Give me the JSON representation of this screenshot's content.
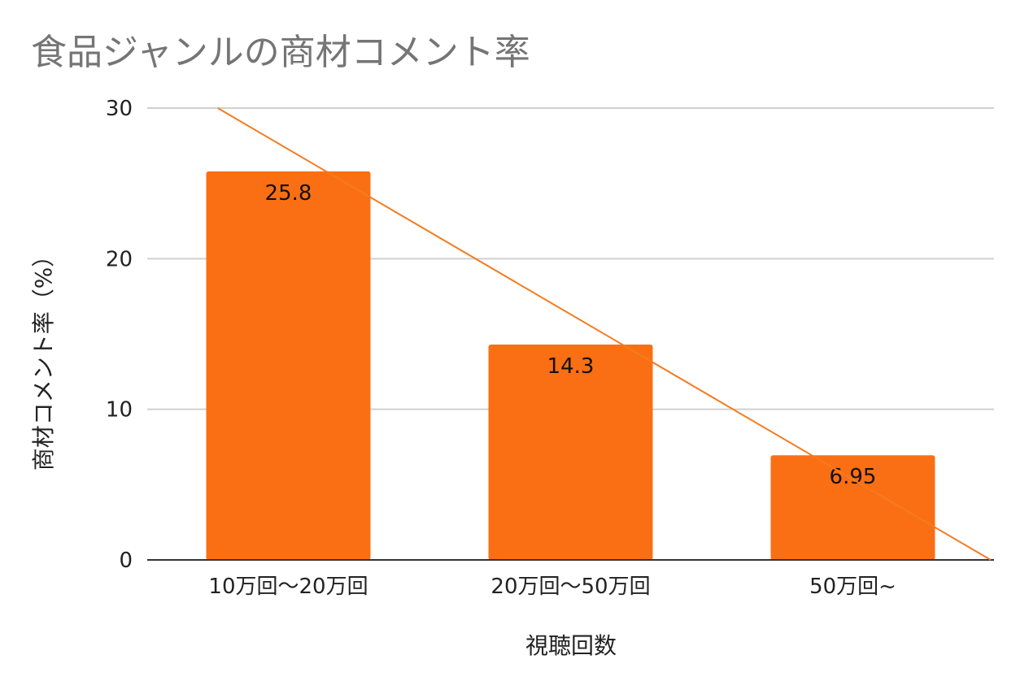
{
  "chart_data": {
    "type": "bar",
    "title": "食品ジャンルの商材コメント率",
    "xlabel": "視聴回数",
    "ylabel": "商材コメント率（%）",
    "categories": [
      "10万回〜20万回",
      "20万回〜50万回",
      "50万回~"
    ],
    "values": [
      25.8,
      14.3,
      6.95
    ],
    "data_labels": [
      "25.8",
      "14.3",
      "6.95"
    ],
    "yticks": [
      "0",
      "10",
      "20",
      "30"
    ],
    "ylim": [
      0,
      30
    ],
    "grid": true,
    "legend": "none",
    "trendline": {
      "type": "linear",
      "start": 30,
      "end": 0
    },
    "colors": {
      "bar": "#fb6f14",
      "trendline": "#f47b20",
      "grid": "#d0d0d0",
      "axis": "#333333",
      "title": "#757575"
    }
  }
}
